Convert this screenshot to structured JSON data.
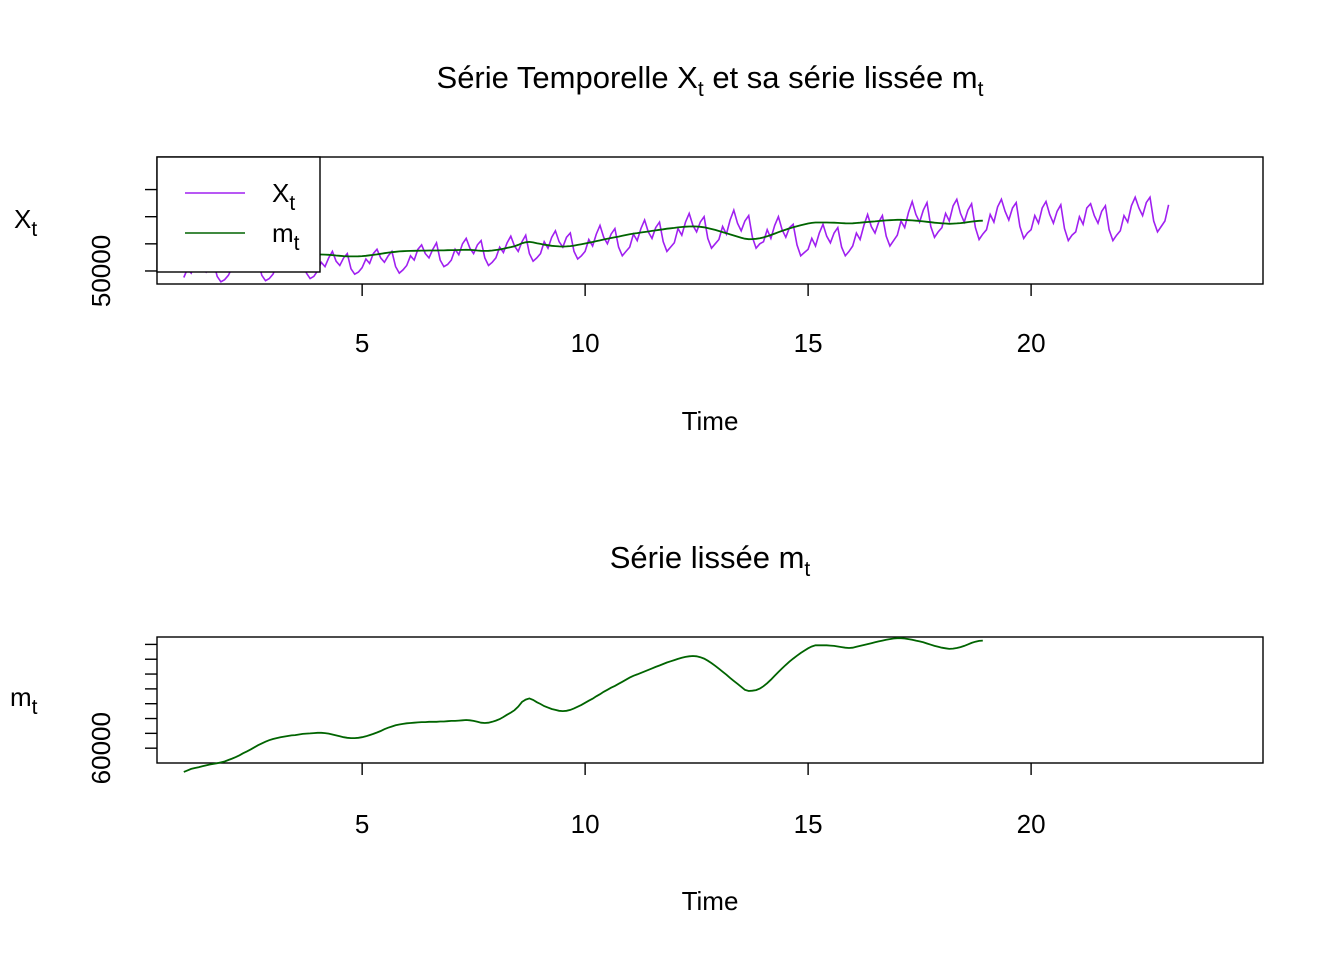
{
  "chart_data": [
    {
      "type": "line",
      "title": {
        "text": "Série Temporelle X",
        "sub1": "t",
        "mid": " et sa série lissée m",
        "sub2": "t"
      },
      "xlabel": "Time",
      "ylabel": {
        "base": "X",
        "sub": "t"
      },
      "xlim": [
        0.4,
        25.2
      ],
      "ylim": [
        38000,
        155000
      ],
      "xticks": [
        5,
        10,
        15,
        20
      ],
      "yticks": [
        50000,
        75000,
        100000,
        125000
      ],
      "ytick_labels": [
        "50000"
      ],
      "grid": false,
      "legend": {
        "position": "top-left",
        "entries": [
          {
            "base": "X",
            "sub": "t",
            "color": "#a020f0"
          },
          {
            "base": "m",
            "sub": "t",
            "color": "#006400"
          }
        ]
      },
      "colors": {
        "X": "#a020f0",
        "m": "#006400"
      },
      "x_start": 1.0,
      "x_step": 0.0833333,
      "series": [
        {
          "key": "X",
          "values": [
            44000,
            52000,
            48000,
            56000,
            60000,
            53000,
            49000,
            55000,
            58000,
            45000,
            40000,
            42000,
            46000,
            53000,
            50000,
            57000,
            61000,
            54000,
            50000,
            56000,
            59000,
            46000,
            41000,
            43000,
            47000,
            55000,
            51000,
            59000,
            63000,
            56000,
            52000,
            58000,
            61000,
            48000,
            43000,
            45000,
            50000,
            58000,
            54000,
            62000,
            68000,
            59000,
            55000,
            62000,
            66000,
            52000,
            47000,
            49000,
            53000,
            61000,
            57000,
            66000,
            70000,
            62000,
            58000,
            64000,
            68000,
            54000,
            48000,
            51000,
            55000,
            64000,
            60000,
            70000,
            74000,
            66000,
            62000,
            70000,
            76000,
            60000,
            54000,
            56000,
            60000,
            70000,
            65000,
            75000,
            80000,
            71000,
            66000,
            74000,
            78000,
            62000,
            55000,
            58000,
            62000,
            72000,
            67000,
            76000,
            82000,
            73000,
            68000,
            77000,
            83000,
            66000,
            59000,
            62000,
            66000,
            77000,
            71000,
            81000,
            87000,
            77000,
            72000,
            81000,
            85000,
            68000,
            61000,
            64000,
            68000,
            79000,
            73000,
            84000,
            92000,
            81000,
            75000,
            84000,
            89000,
            72000,
            64000,
            68000,
            72000,
            84000,
            78000,
            89000,
            97000,
            86000,
            80000,
            90000,
            95000,
            77000,
            68000,
            72000,
            76000,
            89000,
            83000,
            95000,
            103000,
            92000,
            86000,
            95000,
            100000,
            80000,
            71000,
            75000,
            79000,
            91000,
            84000,
            97000,
            106000,
            94000,
            87000,
            96000,
            101000,
            81000,
            71000,
            75000,
            77000,
            88000,
            80000,
            92000,
            100000,
            88000,
            81000,
            90000,
            93000,
            74000,
            64000,
            67000,
            70000,
            80000,
            73000,
            85000,
            93000,
            82000,
            76000,
            85000,
            90000,
            72000,
            64000,
            68000,
            73000,
            85000,
            79000,
            92000,
            102000,
            91000,
            85000,
            95000,
            101000,
            82000,
            73000,
            78000,
            83000,
            96000,
            90000,
            104000,
            114000,
            102000,
            95000,
            106000,
            113000,
            91000,
            81000,
            86000,
            90000,
            103000,
            96000,
            110000,
            116000,
            103000,
            95000,
            106000,
            112000,
            90000,
            79000,
            84000,
            88000,
            102000,
            95000,
            109000,
            116000,
            105000,
            97000,
            108000,
            113000,
            91000,
            80000,
            85000,
            88000,
            101000,
            94000,
            108000,
            114000,
            102000,
            94000,
            105000,
            111000,
            89000,
            78000,
            83000,
            86000,
            100000,
            93000,
            108000,
            112000,
            101000,
            94000,
            105000,
            110000,
            88000,
            78000,
            83000,
            87000,
            101000,
            95000,
            110000,
            118000,
            108000,
            101000,
            113000,
            118000,
            96000,
            86000,
            91000,
            96000,
            111000
          ]
        },
        {
          "key": "m",
          "values": [
            52000,
            52500,
            53000,
            53300,
            53600,
            53900,
            54200,
            54500,
            54700,
            54900,
            55200,
            55500,
            56000,
            56500,
            57000,
            57600,
            58300,
            58900,
            59600,
            60300,
            61000,
            61600,
            62200,
            62700,
            63100,
            63400,
            63700,
            63900,
            64100,
            64300,
            64400,
            64600,
            64800,
            64900,
            65000,
            65100,
            65200,
            65200,
            65100,
            64900,
            64600,
            64300,
            64000,
            63700,
            63500,
            63400,
            63400,
            63500,
            63700,
            64000,
            64400,
            64800,
            65300,
            65800,
            66400,
            66900,
            67300,
            67700,
            68000,
            68200,
            68400,
            68500,
            68600,
            68700,
            68800,
            68800,
            68900,
            68900,
            68900,
            69000,
            69000,
            69100,
            69200,
            69200,
            69300,
            69400,
            69500,
            69400,
            69200,
            68900,
            68600,
            68500,
            68600,
            68900,
            69300,
            69800,
            70500,
            71300,
            72000,
            72800,
            74000,
            75600,
            76400,
            76800,
            76300,
            75500,
            74900,
            74200,
            73700,
            73200,
            72900,
            72600,
            72500,
            72600,
            72900,
            73400,
            74000,
            74600,
            75300,
            76000,
            76700,
            77500,
            78200,
            79000,
            79700,
            80400,
            81000,
            81700,
            82400,
            83100,
            83800,
            84400,
            84900,
            85400,
            85900,
            86400,
            86900,
            87400,
            87900,
            88400,
            88900,
            89300,
            89700,
            90100,
            90500,
            90800,
            91000,
            91100,
            91000,
            90700,
            90200,
            89500,
            88700,
            87800,
            86800,
            85800,
            84800,
            83700,
            82700,
            81700,
            80700,
            79700,
            79300,
            79400,
            79600,
            80100,
            80900,
            81900,
            83100,
            84400,
            85700,
            86900,
            88100,
            89200,
            90200,
            91200,
            92100,
            92900,
            93700,
            94300,
            94700,
            94700,
            94700,
            94700,
            94600,
            94500,
            94300,
            94100,
            93900,
            93800,
            93900,
            94200,
            94500,
            94800,
            95100,
            95400,
            95700,
            96000,
            96300,
            96600,
            96800,
            97000,
            97100,
            97100,
            97000,
            96800,
            96600,
            96300,
            96000,
            95700,
            95300,
            94900,
            94500,
            94200,
            93900,
            93700,
            93500,
            93600,
            93800,
            94100,
            94500,
            95000,
            95500,
            95900,
            96200,
            96300
          ]
        }
      ]
    },
    {
      "type": "line",
      "title": {
        "text": "Série lissée m",
        "sub": "t"
      },
      "xlabel": "Time",
      "ylabel": {
        "base": "m",
        "sub": "t"
      },
      "xlim": [
        0.4,
        25.2
      ],
      "ylim": [
        55000,
        97500
      ],
      "xticks": [
        5,
        10,
        15,
        20
      ],
      "yticks": [
        60000,
        65000,
        70000,
        75000,
        80000,
        85000,
        90000,
        95000
      ],
      "ytick_labels": [
        "60000"
      ],
      "grid": false,
      "colors": {
        "m": "#006400"
      },
      "x_start": 1.0,
      "x_step": 0.0833333,
      "series": [
        {
          "key": "m",
          "ref": 1
        }
      ]
    }
  ]
}
